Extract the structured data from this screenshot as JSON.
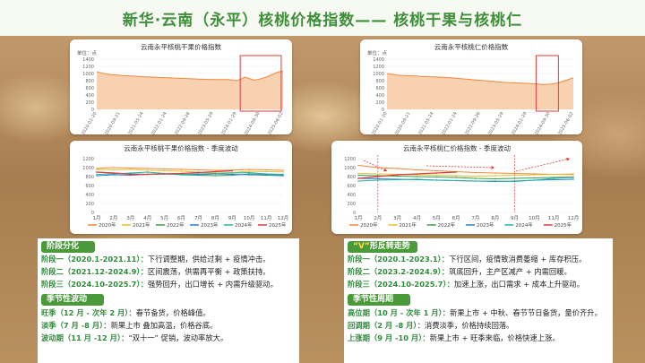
{
  "title": "新华·云南（永平）核桃价格指数—— 核桃干果与核桃仁",
  "colors": {
    "orange": "#f0883e",
    "green": "#2e8b3a",
    "red": "#e23a3a",
    "header_green": "#4a9a3a"
  },
  "chart_data": [
    {
      "type": "area",
      "title": "云南永平核桃干果价格指数",
      "ylabel": "单位：点",
      "ylim": [
        0,
        1400
      ],
      "yticks": [
        0,
        200,
        400,
        600,
        800,
        1000,
        1200,
        1400
      ],
      "xticks": [
        "2020-01-20",
        "2020-09-21",
        "2021-05-24",
        "2022-01-24",
        "2022-09-26",
        "2023-05-29",
        "2024-01-29",
        "2024-09-30",
        "2025-06-02"
      ],
      "values": [
        1050,
        1020,
        990,
        975,
        960,
        955,
        945,
        940,
        930,
        925,
        915,
        910,
        905,
        900,
        895,
        890,
        885,
        880,
        875,
        870,
        865,
        860,
        855,
        850,
        845,
        840,
        835,
        835,
        830,
        830,
        830,
        830,
        820,
        800,
        840,
        900,
        860,
        820,
        830,
        860,
        900,
        950,
        1000,
        1050,
        1060
      ],
      "highlight_range": [
        0.77,
        0.99
      ]
    },
    {
      "type": "area",
      "title": "云南永平核桃仁价格指数",
      "ylabel": "单位：点",
      "ylim": [
        0,
        1400
      ],
      "yticks": [
        0,
        200,
        400,
        600,
        800,
        1000,
        1200,
        1400
      ],
      "xticks": [
        "2020-01-20",
        "2020-09-21",
        "2021-05-24",
        "2022-01-24",
        "2022-09-26",
        "2023-05-29",
        "2024-01-29",
        "2024-09-30",
        "2025-06-02"
      ],
      "values": [
        1000,
        980,
        960,
        950,
        945,
        940,
        935,
        930,
        920,
        915,
        910,
        905,
        900,
        895,
        890,
        880,
        870,
        860,
        850,
        840,
        830,
        820,
        810,
        800,
        790,
        780,
        770,
        760,
        750,
        745,
        740,
        735,
        730,
        725,
        720,
        715,
        700,
        690,
        700,
        710,
        730,
        760,
        800,
        840,
        880
      ],
      "highlight_range": [
        0.8,
        0.92
      ]
    },
    {
      "type": "line",
      "title": "云南永平核桃干果价格指数 - 季度波动",
      "ylim": [
        0,
        1200
      ],
      "yticks": [
        0,
        200,
        400,
        600,
        800,
        1000,
        1200
      ],
      "categories": [
        "1月",
        "2月",
        "3月",
        "4月",
        "5月",
        "6月",
        "7月",
        "8月",
        "9月",
        "10月",
        "11月",
        "12月"
      ],
      "series": [
        {
          "name": "2020年",
          "color": "#f0883e",
          "values": [
            980,
            1000,
            990,
            980,
            970,
            960,
            950,
            940,
            945,
            960,
            950,
            940
          ]
        },
        {
          "name": "2021年",
          "color": "#e7c02c",
          "values": [
            960,
            950,
            960,
            940,
            930,
            920,
            900,
            880,
            890,
            920,
            910,
            905
          ]
        },
        {
          "name": "2022年",
          "color": "#3c9a4a",
          "values": [
            900,
            880,
            860,
            850,
            860,
            840,
            830,
            820,
            830,
            860,
            850,
            840
          ]
        },
        {
          "name": "2023年",
          "color": "#2a7fd1",
          "values": [
            820,
            840,
            830,
            850,
            860,
            850,
            840,
            860,
            850,
            840,
            830,
            820
          ]
        },
        {
          "name": "2024年",
          "color": "#22b3a7",
          "values": [
            850,
            860,
            880,
            900,
            870,
            850,
            860,
            870,
            880,
            890,
            860,
            850
          ]
        },
        {
          "name": "2025年",
          "color": "#e23a3a",
          "values": [
            900,
            880,
            850,
            850,
            860,
            870,
            890,
            910,
            930,
            null,
            null,
            null
          ]
        }
      ]
    },
    {
      "type": "line",
      "title": "云南永平核桃仁价格指数 - 季度波动",
      "ylim": [
        0,
        1200
      ],
      "yticks": [
        0,
        200,
        400,
        600,
        800,
        1000,
        1200
      ],
      "categories": [
        "1月",
        "2月",
        "3月",
        "4月",
        "5月",
        "6月",
        "7月",
        "8月",
        "9月",
        "10月",
        "11月",
        "12月"
      ],
      "series": [
        {
          "name": "2020年",
          "color": "#f0883e",
          "values": [
            1050,
            1000,
            980,
            950,
            930,
            910,
            890,
            880,
            870,
            860,
            850,
            845
          ]
        },
        {
          "name": "2021年",
          "color": "#e7c02c",
          "values": [
            870,
            860,
            850,
            840,
            830,
            820,
            810,
            820,
            830,
            840,
            850,
            860
          ]
        },
        {
          "name": "2022年",
          "color": "#3c9a4a",
          "values": [
            830,
            820,
            810,
            800,
            790,
            780,
            760,
            750,
            760,
            770,
            780,
            790
          ]
        },
        {
          "name": "2023年",
          "color": "#2a7fd1",
          "values": [
            760,
            750,
            740,
            730,
            720,
            710,
            700,
            690,
            700,
            720,
            730,
            740
          ]
        },
        {
          "name": "2024年",
          "color": "#22b3a7",
          "values": [
            700,
            720,
            730,
            740,
            720,
            710,
            700,
            700,
            690,
            720,
            760,
            780
          ]
        },
        {
          "name": "2025年",
          "color": "#e23a3a",
          "values": [
            760,
            800,
            840,
            860,
            880,
            900,
            null,
            null,
            null,
            null,
            null,
            null
          ]
        }
      ]
    }
  ],
  "left": {
    "phase_header": "阶段分化",
    "phases": [
      {
        "label": "阶段一（2020.1-2021.11）：",
        "text": "下行调整期，供给过剩 + 疫情冲击。"
      },
      {
        "label": "阶段二（2021.12-2024.9）：",
        "text": "区间震荡，供需再平衡 + 政策扶持。"
      },
      {
        "label": "阶段三（2024.10-2025.7）：",
        "text": "强势回升，出口增长 + 内需升级驱动。"
      }
    ],
    "season_header": "季节性波动",
    "seasons": [
      {
        "label": "旺季（12 月 - 次年 2 月）：",
        "text": "春节备货，价格峰值。"
      },
      {
        "label": "淡季（7 月 -8 月）：",
        "text": "新果上市 叠加高温，价格谷底。"
      },
      {
        "label": "波动期（11 月 -12 月）：",
        "text": "“双十一” 促销，波动率放大。"
      }
    ]
  },
  "right": {
    "phase_header_v": "“V”",
    "phase_header": "形反转走势",
    "phases": [
      {
        "label": "阶段一（2020.1-2023.1）：",
        "text": "下行区间，疫情致消费萎缩 + 库存积压。"
      },
      {
        "label": "阶段二（2023.2-2024.9）：",
        "text": "筑底回升，主产区减产 + 内需回暖。"
      },
      {
        "label": "阶段三（2024.10-2025.7）：",
        "text": "加速上涨，出口需求 + 成本上升驱动。"
      }
    ],
    "season_header": "季节性周期",
    "seasons": [
      {
        "label": "高位期（10 月 - 次年 1 月）：",
        "text": "新果上市 + 中秋、春节节日备货，量价齐升。"
      },
      {
        "label": "回调期（2 月 -8 月）：",
        "text": "消费淡季，价格持续回落。"
      },
      {
        "label": "上涨期（9 月 -10 月）：",
        "text": "新果上市 + 旺季来临，价格快速上涨。"
      }
    ]
  }
}
